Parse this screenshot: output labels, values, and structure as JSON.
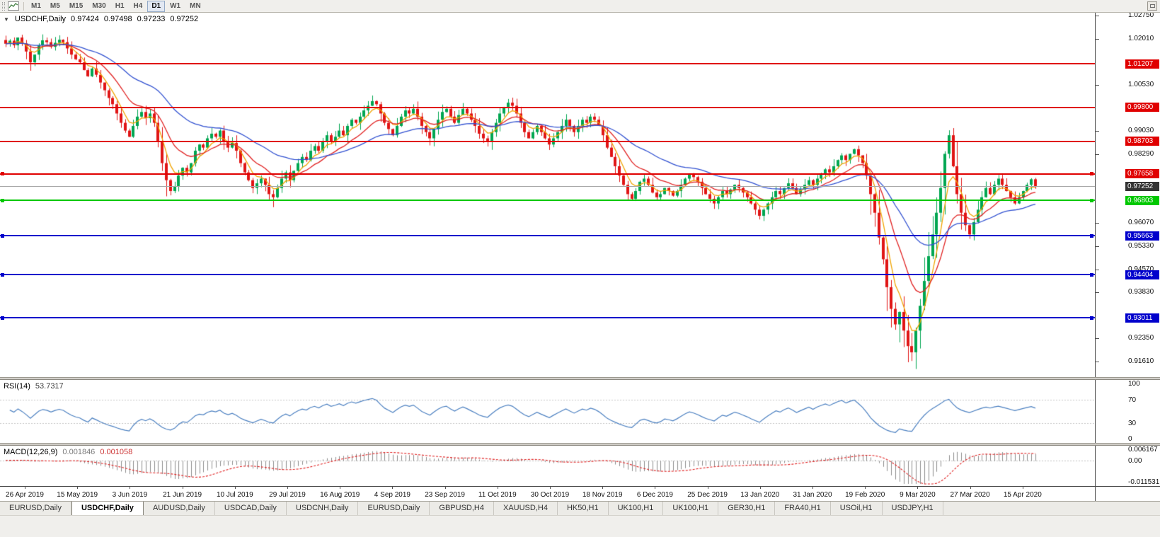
{
  "toolbar": {
    "timeframes": [
      "M1",
      "M5",
      "M15",
      "M30",
      "H1",
      "H4",
      "D1",
      "W1",
      "MN"
    ],
    "active_timeframe": "D1"
  },
  "colors": {
    "bull": "#00a651",
    "bear": "#e01515",
    "resistance_red": "#e00000",
    "support_green": "#00c800",
    "support_blue": "#0000cc",
    "current_badge": "#333333",
    "current_line": "#a8a8a8"
  },
  "chart_data": {
    "type": "candlestick",
    "symbol": "USDCHF,Daily",
    "ohlc": {
      "open": "0.97424",
      "high": "0.97498",
      "low": "0.97233",
      "close": "0.97252"
    },
    "axis": {
      "min": 0.911,
      "max": 1.0285,
      "ticks": [
        {
          "label": "1.02750",
          "value": 1.0275
        },
        {
          "label": "1.02010",
          "value": 1.0201
        },
        {
          "label": "1.00530",
          "value": 1.0053
        },
        {
          "label": "0.99030",
          "value": 0.9903
        },
        {
          "label": "0.98290",
          "value": 0.9829
        },
        {
          "label": "0.96070",
          "value": 0.9607
        },
        {
          "label": "0.95330",
          "value": 0.9533
        },
        {
          "label": "0.94570",
          "value": 0.9457
        },
        {
          "label": "0.93830",
          "value": 0.9383
        },
        {
          "label": "0.92350",
          "value": 0.9235
        },
        {
          "label": "0.91610",
          "value": 0.9161
        }
      ]
    },
    "levels": [
      {
        "label": "1.01207",
        "value": 1.01207,
        "color": "#e00000",
        "width": 2,
        "handles": false
      },
      {
        "label": "0.99800",
        "value": 0.998,
        "color": "#e00000",
        "width": 2,
        "handles": false
      },
      {
        "label": "0.98703",
        "value": 0.98703,
        "color": "#e00000",
        "width": 2,
        "handles": false
      },
      {
        "label": "0.97658",
        "value": 0.97658,
        "color": "#e00000",
        "width": 2,
        "handles": true
      },
      {
        "label": "0.96803",
        "value": 0.96803,
        "color": "#00c800",
        "width": 2,
        "handles": true
      },
      {
        "label": "0.95663",
        "value": 0.95663,
        "color": "#0000cc",
        "width": 2,
        "handles": true
      },
      {
        "label": "0.94404",
        "value": 0.94404,
        "color": "#0000cc",
        "width": 2,
        "handles": true
      },
      {
        "label": "0.93011",
        "value": 0.93011,
        "color": "#0000cc",
        "width": 2,
        "handles": true
      }
    ],
    "current_price": {
      "label": "0.97252",
      "value": 0.97252
    },
    "moving_averages": [
      {
        "period": 5,
        "color": "#f0a400"
      },
      {
        "period": 13,
        "color": "#e02020"
      },
      {
        "period": 34,
        "color": "#3050d0"
      }
    ],
    "candles": {
      "closes": [
        1.0185,
        1.0195,
        1.018,
        1.0205,
        1.0186,
        1.016,
        1.0125,
        1.015,
        1.018,
        1.0196,
        1.019,
        1.0175,
        1.0188,
        1.0198,
        1.019,
        1.017,
        1.015,
        1.0135,
        1.0125,
        1.01,
        1.008,
        1.0105,
        1.0085,
        1.006,
        1.0035,
        1.001,
        0.999,
        0.996,
        0.993,
        0.9905,
        0.9885,
        0.992,
        0.995,
        0.9965,
        0.9945,
        0.996,
        0.993,
        0.987,
        0.98,
        0.9745,
        0.971,
        0.9725,
        0.976,
        0.9785,
        0.977,
        0.98,
        0.984,
        0.986,
        0.985,
        0.988,
        0.9895,
        0.9885,
        0.9905,
        0.987,
        0.985,
        0.9865,
        0.984,
        0.98,
        0.977,
        0.9745,
        0.972,
        0.9735,
        0.975,
        0.973,
        0.97,
        0.969,
        0.972,
        0.975,
        0.977,
        0.9745,
        0.9775,
        0.98,
        0.982,
        0.981,
        0.984,
        0.9855,
        0.984,
        0.987,
        0.989,
        0.987,
        0.9885,
        0.9905,
        0.989,
        0.992,
        0.994,
        0.993,
        0.995,
        0.997,
        0.9985,
        1.0,
        0.999,
        0.996,
        0.993,
        0.991,
        0.989,
        0.992,
        0.995,
        0.997,
        0.996,
        0.9975,
        0.995,
        0.992,
        0.99,
        0.988,
        0.991,
        0.994,
        0.9965,
        0.9975,
        0.995,
        0.993,
        0.9955,
        0.9975,
        0.996,
        0.994,
        0.992,
        0.9895,
        0.988,
        0.987,
        0.99,
        0.993,
        0.996,
        0.998,
        0.9995,
        0.9985,
        0.996,
        0.993,
        0.99,
        0.988,
        0.99,
        0.992,
        0.99,
        0.988,
        0.986,
        0.988,
        0.99,
        0.992,
        0.994,
        0.992,
        0.99,
        0.992,
        0.994,
        0.993,
        0.995,
        0.994,
        0.992,
        0.989,
        0.985,
        0.982,
        0.979,
        0.976,
        0.973,
        0.97,
        0.9685,
        0.971,
        0.974,
        0.975,
        0.973,
        0.9705,
        0.969,
        0.97,
        0.972,
        0.971,
        0.9695,
        0.971,
        0.973,
        0.975,
        0.9765,
        0.9755,
        0.974,
        0.972,
        0.97,
        0.9685,
        0.967,
        0.969,
        0.971,
        0.97,
        0.9715,
        0.973,
        0.972,
        0.9705,
        0.969,
        0.967,
        0.965,
        0.963,
        0.965,
        0.967,
        0.969,
        0.971,
        0.97,
        0.972,
        0.9735,
        0.972,
        0.97,
        0.9715,
        0.973,
        0.9745,
        0.973,
        0.975,
        0.9765,
        0.978,
        0.977,
        0.979,
        0.981,
        0.9825,
        0.981,
        0.983,
        0.9845,
        0.9825,
        0.98,
        0.976,
        0.97,
        0.964,
        0.956,
        0.949,
        0.94,
        0.933,
        0.928,
        0.932,
        0.926,
        0.921,
        0.919,
        0.926,
        0.934,
        0.942,
        0.95,
        0.957,
        0.964,
        0.972,
        0.983,
        0.989,
        0.979,
        0.97,
        0.964,
        0.96,
        0.957,
        0.961,
        0.965,
        0.969,
        0.972,
        0.97,
        0.973,
        0.975,
        0.973,
        0.971,
        0.969,
        0.967,
        0.969,
        0.971,
        0.973,
        0.9748,
        0.9725
      ],
      "wick_overrides": {
        "6": {
          "low": 1.0098
        },
        "39": {
          "low": 0.9693
        },
        "65": {
          "low": 0.9658
        },
        "89": {
          "high": 1.0018
        },
        "220": {
          "low": 0.9162
        },
        "229": {
          "high": 0.9906
        }
      },
      "high_vol_range": [
        209,
        233
      ]
    }
  },
  "indicators": {
    "rsi": {
      "name": "RSI(14)",
      "value": "53.7317",
      "period": 14,
      "color": "#4a7fc0",
      "dashed_levels": [
        70,
        30
      ],
      "ticks": [
        {
          "label": "100",
          "value": 100
        },
        {
          "label": "70",
          "value": 70
        },
        {
          "label": "30",
          "value": 30
        },
        {
          "label": "0",
          "value": 0
        }
      ]
    },
    "macd": {
      "name": "MACD(12,26,9)",
      "value_main": "0.001846",
      "value_signal": "0.001058",
      "fast": 12,
      "slow": 26,
      "signal": 9,
      "hist_color": "#8c8c8c",
      "signal_color": "#e02020",
      "ticks": [
        {
          "label": "0.006167",
          "value": 0.006167
        },
        {
          "label": "0.00",
          "value": 0
        },
        {
          "label": "-0.011531",
          "value": -0.011531
        }
      ]
    }
  },
  "date_axis": {
    "labels": [
      "26 Apr 2019",
      "15 May 2019",
      "3 Jun 2019",
      "21 Jun 2019",
      "10 Jul 2019",
      "29 Jul 2019",
      "16 Aug 2019",
      "4 Sep 2019",
      "23 Sep 2019",
      "11 Oct 2019",
      "30 Oct 2019",
      "18 Nov 2019",
      "6 Dec 2019",
      "25 Dec 2019",
      "13 Jan 2020",
      "31 Jan 2020",
      "19 Feb 2020",
      "9 Mar 2020",
      "27 Mar 2020",
      "15 Apr 2020"
    ]
  },
  "tabs": {
    "active_index": 1,
    "items": [
      "EURUSD,Daily",
      "USDCHF,Daily",
      "AUDUSD,Daily",
      "USDCAD,Daily",
      "USDCNH,Daily",
      "EURUSD,Daily",
      "GBPUSD,H4",
      "XAUUSD,H4",
      "HK50,H1",
      "UK100,H1",
      "UK100,H1",
      "GER30,H1",
      "FRA40,H1",
      "USOil,H1",
      "USDJPY,H1"
    ]
  }
}
